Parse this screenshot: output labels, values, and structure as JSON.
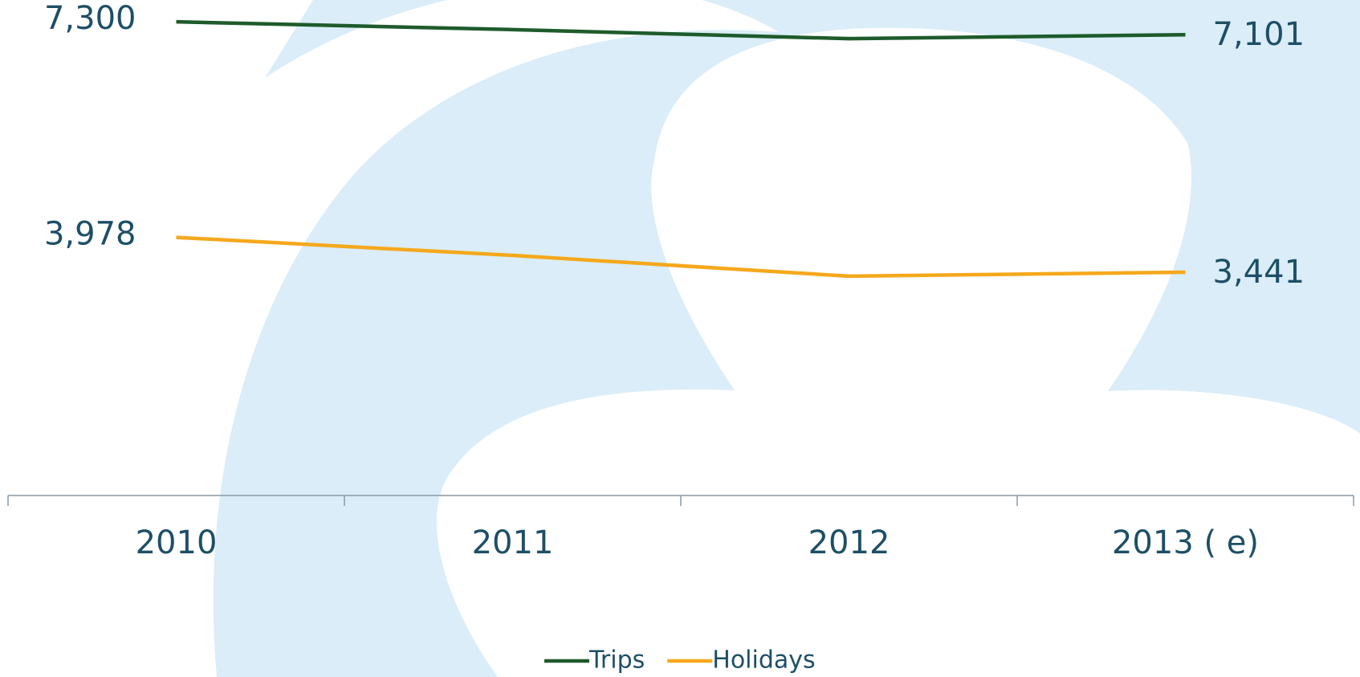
{
  "chart_data": {
    "type": "line",
    "categories": [
      "2010",
      "2011",
      "2012",
      "2013 ( e)"
    ],
    "series": [
      {
        "name": "Trips",
        "color": "#1e5b2b",
        "values": [
          7300,
          7180,
          7040,
          7101
        ],
        "value_labels": [
          "7,300",
          null,
          null,
          "7,101"
        ]
      },
      {
        "name": "Holidays",
        "color": "#f5a81c",
        "values": [
          3978,
          3700,
          3380,
          3441
        ],
        "value_labels": [
          "3,978",
          null,
          null,
          "3,441"
        ]
      }
    ],
    "legend": "bottom"
  }
}
